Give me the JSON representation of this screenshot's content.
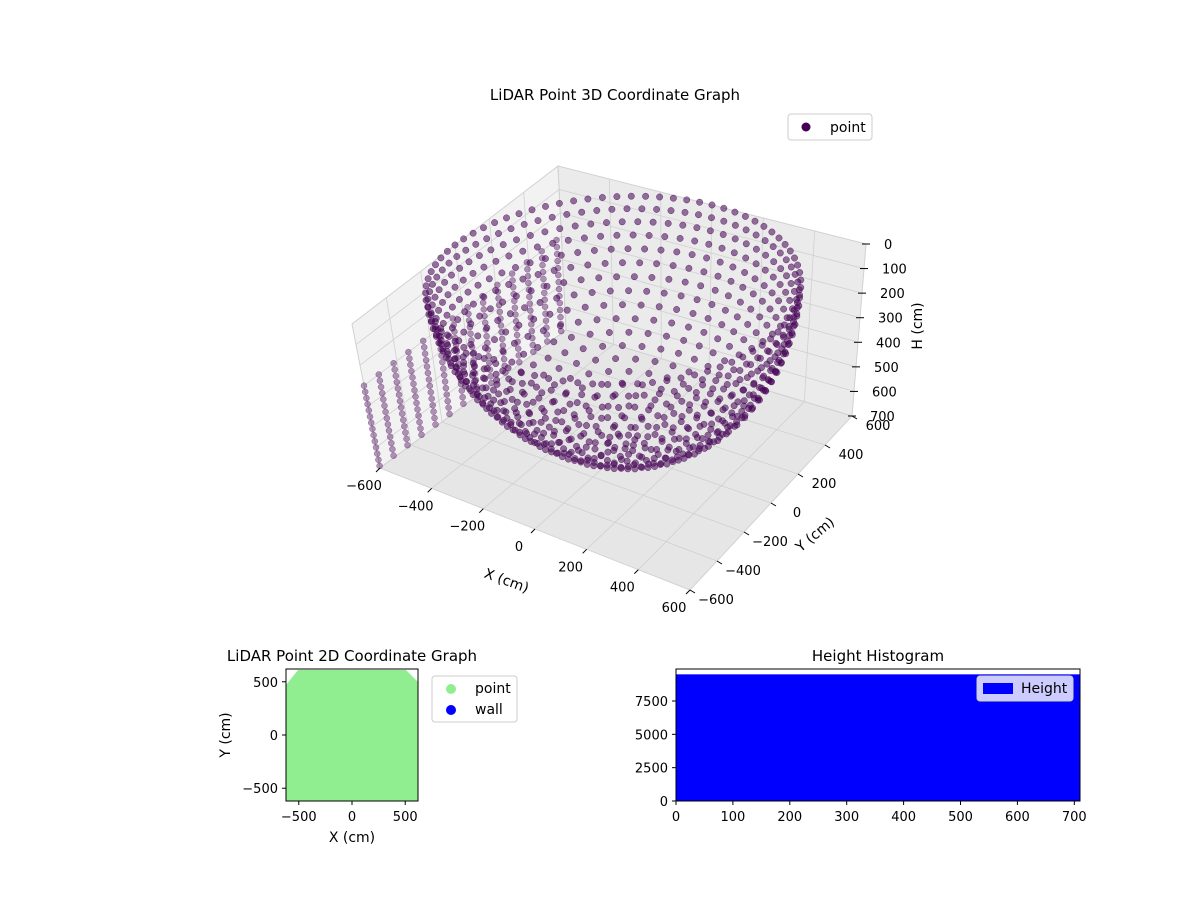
{
  "chart_data": [
    {
      "type": "scatter",
      "projection": "3d",
      "title": "LiDAR Point 3D Coordinate Graph",
      "xlabel": "X (cm)",
      "ylabel": "Y (cm)",
      "zlabel": "H (cm)",
      "xticks": [
        "−600",
        "−400",
        "−200",
        "0",
        "200",
        "400",
        "600"
      ],
      "yticks": [
        "−600",
        "−400",
        "−200",
        "0",
        "200",
        "400",
        "600"
      ],
      "zticks": [
        "0",
        "100",
        "200",
        "300",
        "400",
        "500",
        "600",
        "700"
      ],
      "xlim": [
        -600,
        600
      ],
      "ylim": [
        -600,
        600
      ],
      "zlim": [
        0,
        700
      ],
      "z_axis_inverted": true,
      "legend": {
        "entries": [
          "point"
        ],
        "placement": "top-right"
      },
      "series": [
        {
          "name": "point",
          "color": "#440154",
          "shape": "hemispherical dome of scan rings centered near (0,0), depth up to ~700 cm, plus vertical wall columns along the X=-600 edge"
        }
      ],
      "grid": true
    },
    {
      "type": "scatter",
      "title": "LiDAR Point 2D Coordinate Graph",
      "xlabel": "X (cm)",
      "ylabel": "Y (cm)",
      "xticks": [
        "−500",
        "0",
        "500"
      ],
      "yticks": [
        "−500",
        "0",
        "500"
      ],
      "xlim": [
        -620,
        620
      ],
      "ylim": [
        -620,
        620
      ],
      "legend": {
        "entries": [
          "point",
          "wall"
        ],
        "placement": "outside right"
      },
      "series": [
        {
          "name": "point",
          "color": "#90ee90",
          "fill": "dense region covering the full square, corners clipped near Y=+500"
        },
        {
          "name": "wall",
          "color": "#0000ff",
          "points": []
        }
      ]
    },
    {
      "type": "bar",
      "title": "Height Histogram",
      "xlabel": "",
      "ylabel": "",
      "xticks": [
        "0",
        "100",
        "200",
        "300",
        "400",
        "500",
        "600",
        "700"
      ],
      "yticks": [
        "0",
        "2500",
        "5000",
        "7500"
      ],
      "xlim": [
        0,
        710
      ],
      "ylim": [
        0,
        9900
      ],
      "legend": {
        "entries": [
          "Height"
        ],
        "placement": "top-right"
      },
      "series": [
        {
          "name": "Height",
          "color": "#0000ff",
          "bin_range": [
            0,
            710
          ],
          "count_per_bin": 9500
        }
      ]
    }
  ]
}
